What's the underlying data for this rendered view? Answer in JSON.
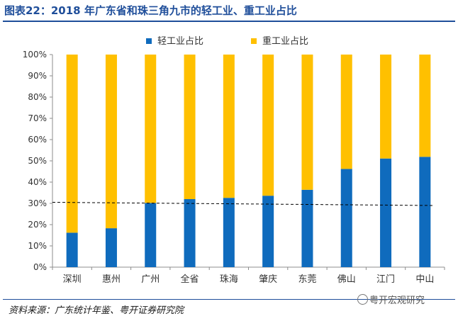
{
  "title": "图表22：2018 年广东省和珠三角九市的轻工业、重工业占比",
  "source": "资料来源：广东统计年鉴、粤开证券研究院",
  "watermark": "粤开宏观研究",
  "colors": {
    "light": "#0f6bbd",
    "heavy": "#ffc000",
    "brand": "#1f4e9a"
  },
  "icons": {
    "watermark": "wechat-icon"
  },
  "chart_data": {
    "type": "bar",
    "stacked": true,
    "categories": [
      "深圳",
      "惠州",
      "广州",
      "全省",
      "珠海",
      "肇庆",
      "东莞",
      "佛山",
      "江门",
      "中山"
    ],
    "series": [
      {
        "name": "轻工业占比",
        "values": [
          16.2,
          18.3,
          30.2,
          32.0,
          32.6,
          33.6,
          36.4,
          46.2,
          51.1,
          51.9
        ]
      },
      {
        "name": "重工业占比",
        "values": [
          83.8,
          81.7,
          69.8,
          68.0,
          67.4,
          66.4,
          63.6,
          53.8,
          48.9,
          48.1
        ]
      }
    ],
    "trendline": {
      "style": "dashed",
      "start": 30.5,
      "end": 29.0
    },
    "yticks": [
      "0%",
      "10%",
      "20%",
      "30%",
      "40%",
      "50%",
      "60%",
      "70%",
      "80%",
      "90%",
      "100%"
    ],
    "ylim": [
      0,
      100
    ],
    "legend_position": "top",
    "grid": false
  }
}
